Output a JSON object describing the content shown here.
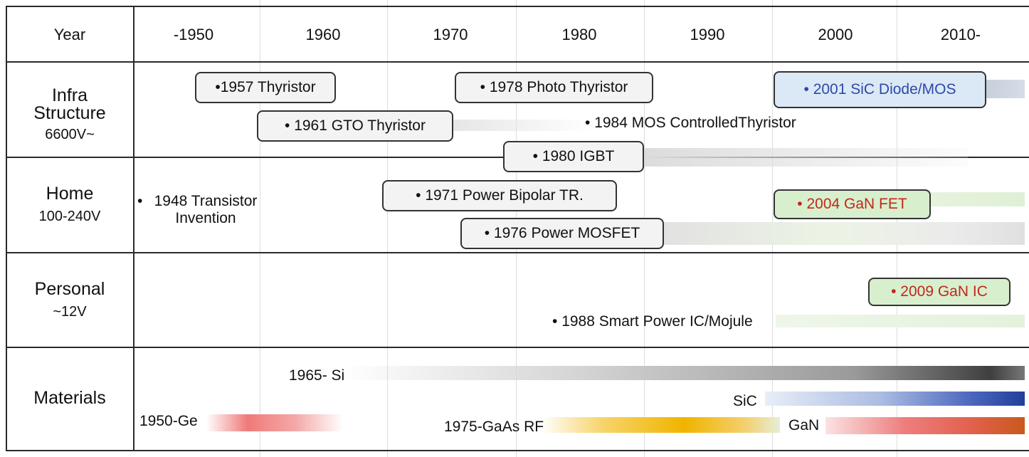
{
  "header": {
    "year_label": "Year"
  },
  "years": [
    "-1950",
    "1960",
    "1970",
    "1980",
    "1990",
    "2000",
    "2010-"
  ],
  "categories": {
    "infra": {
      "title": "Infra\nStructure",
      "voltage": "6600V~"
    },
    "home": {
      "title": "Home",
      "voltage": "100-240V"
    },
    "personal": {
      "title": "Personal",
      "voltage": "~12V"
    },
    "materials": {
      "title": "Materials"
    }
  },
  "events": {
    "thyristor_1957": "1957 Thyristor",
    "photo_thyristor_1978": "1978 Photo Thyristor",
    "sic_diode_2001": "2001 SiC Diode/MOS",
    "gto_1961": "1961 GTO Thyristor",
    "mos_ct_1984": "1984 MOS ControlledThyristor",
    "igbt_1980": "1980 IGBT",
    "transistor_1948": "1948 Transistor\nInvention",
    "bipolar_1971": "1971 Power Bipolar TR.",
    "gan_fet_2004": "2004 GaN FET",
    "mosfet_1976": "1976 Power MOSFET",
    "gan_ic_2009": "2009 GaN IC",
    "smart_power_1988": "1988 Smart Power IC/Mojule"
  },
  "materials": {
    "si": "1965- Si",
    "sic": "SiC",
    "ge": "1950-Ge",
    "gaas": "1975-GaAs RF",
    "gan": "GaN"
  },
  "colors": {
    "si": "#4a4a4a",
    "sic": "#1f3f9a",
    "ge": "#ef6a6a",
    "gaas": "#f0b400",
    "gan": "#c85a1c",
    "gan_device": "#c0281d",
    "sic_device": "#2c4aa8"
  }
}
